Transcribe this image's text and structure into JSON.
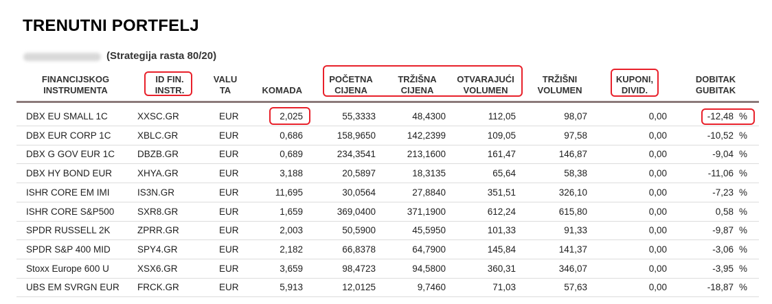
{
  "title": "TRENUTNI PORTFELJ",
  "subtitle": "(Strategija rasta 80/20)",
  "headers": {
    "instrument": "FINANCIJSKOG\nINSTRUMENTA",
    "id": "ID FIN.\nINSTR.",
    "valuta": "VALU\nTA",
    "komada": "KOMADA",
    "pocetna": "POČETNA\nCIJENA",
    "trzisna": "TRŽIŠNA\nCIJENA",
    "otvarajuci": "OTVARAJUĆI\nVOLUMEN",
    "trzisni": "TRŽIŠNI\nVOLUMEN",
    "kuponi": "KUPONI,\nDIVID.",
    "dobitak": "DOBITAK\nGUBITAK"
  },
  "rows": [
    {
      "name": "DBX EU SMALL 1C",
      "id": "XXSC.GR",
      "cur": "EUR",
      "qty": "2,025",
      "start": "55,3333",
      "market": "48,4300",
      "openvol": "112,05",
      "mktvol": "98,07",
      "coupon": "0,00",
      "pl": "-12,48",
      "pct": "%"
    },
    {
      "name": "DBX EUR CORP 1C",
      "id": "XBLC.GR",
      "cur": "EUR",
      "qty": "0,686",
      "start": "158,9650",
      "market": "142,2399",
      "openvol": "109,05",
      "mktvol": "97,58",
      "coupon": "0,00",
      "pl": "-10,52",
      "pct": "%"
    },
    {
      "name": "DBX G GOV EUR 1C",
      "id": "DBZB.GR",
      "cur": "EUR",
      "qty": "0,689",
      "start": "234,3541",
      "market": "213,1600",
      "openvol": "161,47",
      "mktvol": "146,87",
      "coupon": "0,00",
      "pl": "-9,04",
      "pct": "%"
    },
    {
      "name": "DBX HY BOND EUR",
      "id": "XHYA.GR",
      "cur": "EUR",
      "qty": "3,188",
      "start": "20,5897",
      "market": "18,3135",
      "openvol": "65,64",
      "mktvol": "58,38",
      "coupon": "0,00",
      "pl": "-11,06",
      "pct": "%"
    },
    {
      "name": "ISHR CORE EM IMI",
      "id": "IS3N.GR",
      "cur": "EUR",
      "qty": "11,695",
      "start": "30,0564",
      "market": "27,8840",
      "openvol": "351,51",
      "mktvol": "326,10",
      "coupon": "0,00",
      "pl": "-7,23",
      "pct": "%"
    },
    {
      "name": "ISHR CORE S&P500",
      "id": "SXR8.GR",
      "cur": "EUR",
      "qty": "1,659",
      "start": "369,0400",
      "market": "371,1900",
      "openvol": "612,24",
      "mktvol": "615,80",
      "coupon": "0,00",
      "pl": "0,58",
      "pct": "%"
    },
    {
      "name": "SPDR RUSSELL 2K",
      "id": "ZPRR.GR",
      "cur": "EUR",
      "qty": "2,003",
      "start": "50,5900",
      "market": "45,5950",
      "openvol": "101,33",
      "mktvol": "91,33",
      "coupon": "0,00",
      "pl": "-9,87",
      "pct": "%"
    },
    {
      "name": "SPDR S&P 400 MID",
      "id": "SPY4.GR",
      "cur": "EUR",
      "qty": "2,182",
      "start": "66,8378",
      "market": "64,7900",
      "openvol": "145,84",
      "mktvol": "141,37",
      "coupon": "0,00",
      "pl": "-3,06",
      "pct": "%"
    },
    {
      "name": "Stoxx Europe 600 U",
      "id": "XSX6.GR",
      "cur": "EUR",
      "qty": "3,659",
      "start": "98,4723",
      "market": "94,5800",
      "openvol": "360,31",
      "mktvol": "346,07",
      "coupon": "0,00",
      "pl": "-3,95",
      "pct": "%"
    },
    {
      "name": "UBS EM SVRGN EUR",
      "id": "FRCK.GR",
      "cur": "EUR",
      "qty": "5,913",
      "start": "12,0125",
      "market": "9,7460",
      "openvol": "71,03",
      "mktvol": "57,63",
      "coupon": "0,00",
      "pl": "-18,87",
      "pct": "%"
    }
  ],
  "accent_color": "#e8202a"
}
